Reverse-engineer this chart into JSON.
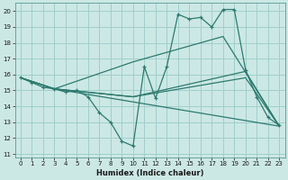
{
  "xlabel": "Humidex (Indice chaleur)",
  "bg_color": "#cce8e5",
  "grid_color": "#9fcfcc",
  "line_color": "#2d7a6e",
  "xlim": [
    -0.5,
    23.5
  ],
  "ylim": [
    10.8,
    20.5
  ],
  "yticks": [
    11,
    12,
    13,
    14,
    15,
    16,
    17,
    18,
    19,
    20
  ],
  "xticks": [
    0,
    1,
    2,
    3,
    4,
    5,
    6,
    7,
    8,
    9,
    10,
    11,
    12,
    13,
    14,
    15,
    16,
    17,
    18,
    19,
    20,
    21,
    22,
    23
  ],
  "main_series": {
    "x": [
      0,
      1,
      2,
      3,
      4,
      5,
      6,
      7,
      8,
      9,
      10,
      11,
      12,
      13,
      14,
      15,
      16,
      17,
      18,
      19,
      20,
      21,
      22,
      23
    ],
    "y": [
      15.8,
      15.5,
      15.2,
      15.1,
      14.9,
      15.0,
      14.6,
      13.6,
      13.0,
      11.8,
      11.5,
      16.5,
      14.5,
      16.5,
      19.8,
      19.5,
      19.6,
      19.0,
      20.1,
      20.1,
      16.3,
      14.6,
      13.3,
      12.8
    ]
  },
  "straight_lines": [
    {
      "x": [
        0,
        3,
        10,
        18,
        23
      ],
      "y": [
        15.8,
        15.1,
        16.8,
        18.4,
        12.75
      ]
    },
    {
      "x": [
        0,
        3,
        10,
        20,
        23
      ],
      "y": [
        15.8,
        15.1,
        14.6,
        16.2,
        12.75
      ]
    },
    {
      "x": [
        0,
        3,
        10,
        20,
        23
      ],
      "y": [
        15.8,
        15.1,
        14.6,
        15.8,
        12.75
      ]
    },
    {
      "x": [
        0,
        3,
        23
      ],
      "y": [
        15.8,
        15.1,
        12.75
      ]
    }
  ]
}
